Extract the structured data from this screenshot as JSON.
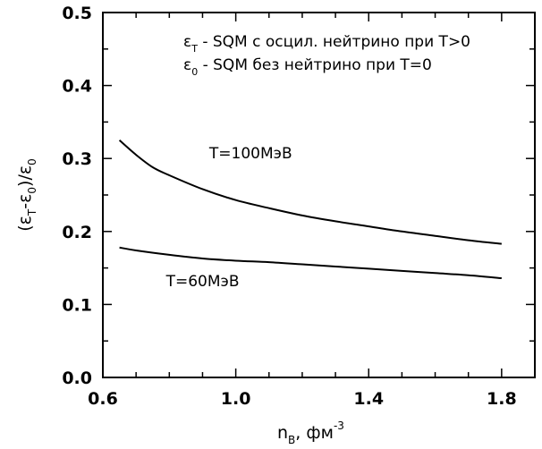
{
  "chart_data": {
    "type": "line",
    "title": "",
    "xlabel": {
      "main": "n",
      "sub": "B",
      "tail": ", фм",
      "sup": "-3"
    },
    "ylabel": {
      "open": "(",
      "eps1": "ε",
      "sub1": "T",
      "mid": "-",
      "eps2": "ε",
      "sub2": "0",
      "close": ")/",
      "eps3": "ε",
      "sub3": "0"
    },
    "xlim": [
      0.6,
      1.9
    ],
    "ylim": [
      0.0,
      0.5
    ],
    "x_ticks": [
      "0.6",
      "1.0",
      "1.4",
      "1.8"
    ],
    "y_ticks": [
      "0.0",
      "0.1",
      "0.2",
      "0.3",
      "0.4",
      "0.5"
    ],
    "x_tick_values": [
      0.6,
      1.0,
      1.4,
      1.8
    ],
    "y_tick_values": [
      0.0,
      0.1,
      0.2,
      0.3,
      0.4,
      0.5
    ],
    "x_minor_step": 0.1,
    "y_minor_step": 0.05,
    "grid": false,
    "legend": {
      "line1": {
        "eps": "ε",
        "sub": "T",
        "text": " - SQM с осцил. нейтрино при T>0"
      },
      "line2": {
        "eps": "ε",
        "sub": "0",
        "text": " - SQM без нейтрино при T=0"
      }
    },
    "series": [
      {
        "name": "T=100МэВ",
        "x": [
          0.65,
          0.7,
          0.75,
          0.8,
          0.9,
          1.0,
          1.1,
          1.2,
          1.3,
          1.4,
          1.5,
          1.6,
          1.7,
          1.8
        ],
        "y": [
          0.325,
          0.305,
          0.288,
          0.277,
          0.258,
          0.243,
          0.232,
          0.222,
          0.214,
          0.207,
          0.2,
          0.194,
          0.188,
          0.183
        ]
      },
      {
        "name": "T=60МэВ",
        "x": [
          0.65,
          0.7,
          0.8,
          0.9,
          1.0,
          1.1,
          1.2,
          1.3,
          1.4,
          1.5,
          1.6,
          1.7,
          1.8
        ],
        "y": [
          0.178,
          0.174,
          0.168,
          0.163,
          0.16,
          0.158,
          0.155,
          0.152,
          0.149,
          0.146,
          0.143,
          0.14,
          0.136
        ]
      }
    ],
    "annotations": [
      {
        "text": "T=100МэВ",
        "x": 0.92,
        "y": 0.3
      },
      {
        "text": "T=60МэВ",
        "x": 0.79,
        "y": 0.125
      }
    ]
  }
}
